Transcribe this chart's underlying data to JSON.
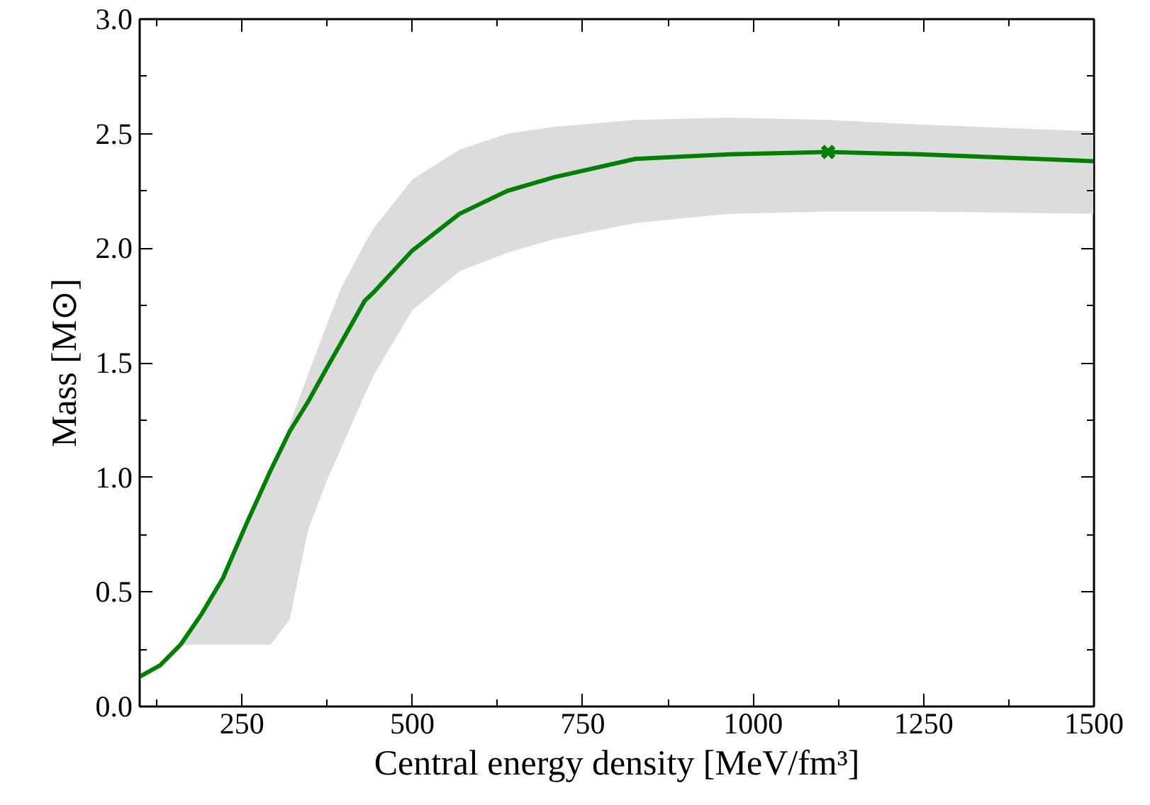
{
  "chart_data": {
    "type": "line",
    "xlabel": "Central energy density [MeV/fm³]",
    "ylabel": "Mass [M⊙]",
    "xlim": [
      100,
      1500
    ],
    "ylim": [
      0,
      3
    ],
    "xticks": [
      {
        "value": 125,
        "label": null
      },
      250,
      {
        "value": 375,
        "label": null
      },
      500,
      {
        "value": 625,
        "label": null
      },
      750,
      {
        "value": 875,
        "label": null
      },
      1000,
      {
        "value": 1125,
        "label": null
      },
      1250,
      {
        "value": 1375,
        "label": null
      },
      1500
    ],
    "yticks": [
      "0.0",
      {
        "value": 0.25,
        "label": null
      },
      0.5,
      {
        "value": 0.75,
        "label": null
      },
      "1.0",
      {
        "value": 1.25,
        "label": null
      },
      1.5,
      {
        "value": 1.75,
        "label": null
      },
      "2.0",
      {
        "value": 2.25,
        "label": null
      },
      2.5,
      {
        "value": 2.75,
        "label": null
      },
      "3.0"
    ],
    "grid": false,
    "series": [
      {
        "color": "#008000",
        "x": [
          100,
          130,
          160,
          190,
          222,
          257,
          292,
          320,
          347,
          375,
          396,
          430,
          444,
          500,
          569,
          639,
          708,
          827,
          965,
          1110,
          1244,
          1500
        ],
        "values": [
          0.13,
          0.18,
          0.27,
          0.4,
          0.56,
          0.8,
          1.03,
          1.2,
          1.33,
          1.48,
          1.59,
          1.77,
          1.81,
          1.99,
          2.15,
          2.25,
          2.31,
          2.39,
          2.41,
          2.42,
          2.41,
          2.38
        ],
        "upper": [
          null,
          null,
          0.27,
          0.4,
          0.56,
          0.8,
          1.03,
          1.23,
          1.45,
          1.67,
          1.83,
          2.02,
          2.09,
          2.3,
          2.43,
          2.5,
          2.53,
          2.56,
          2.57,
          2.56,
          2.54,
          2.51
        ],
        "lower": [
          null,
          null,
          0.27,
          0.27,
          0.27,
          0.27,
          0.27,
          0.38,
          0.77,
          0.99,
          1.13,
          1.36,
          1.45,
          1.73,
          1.9,
          1.98,
          2.04,
          2.11,
          2.15,
          2.16,
          2.16,
          2.15
        ]
      },
      {
        "type": "scatter",
        "color": "#008000",
        "marker": "cross",
        "x": [
          1110
        ],
        "values": [
          2.42
        ]
      }
    ]
  }
}
